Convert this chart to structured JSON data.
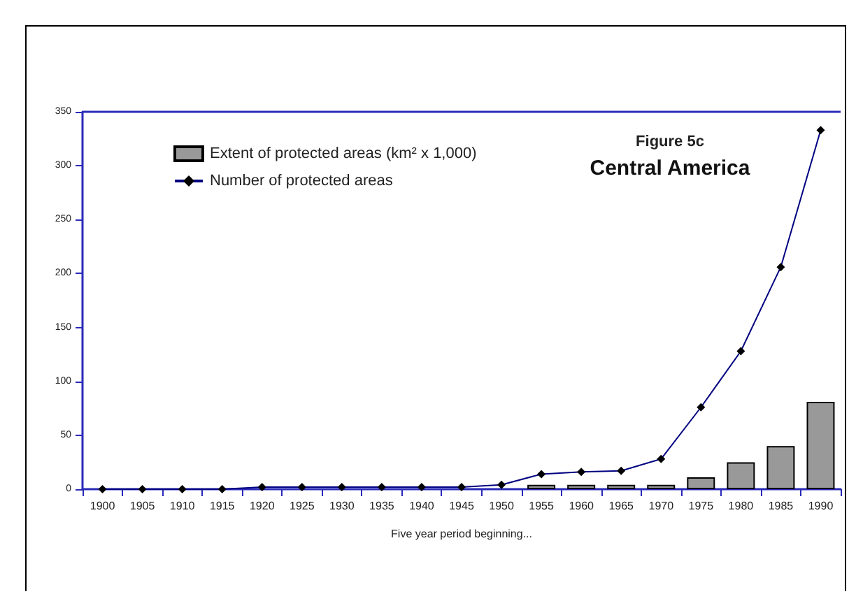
{
  "chart_data": {
    "type": "bar",
    "title": "Figure 5c",
    "subtitle": "Central America",
    "xlabel": "Five year period beginning...",
    "categories": [
      "1900",
      "1905",
      "1910",
      "1915",
      "1920",
      "1925",
      "1930",
      "1935",
      "1940",
      "1945",
      "1950",
      "1955",
      "1960",
      "1965",
      "1970",
      "1975",
      "1980",
      "1985",
      "1990"
    ],
    "series": [
      {
        "name": "Extent of protected areas (km² x 1,000)",
        "color": "#999999",
        "values": [
          0,
          0,
          0,
          0,
          0,
          0,
          0,
          0,
          0,
          0,
          0,
          4,
          4,
          4,
          4,
          11,
          25,
          40,
          81
        ]
      },
      {
        "name": "Number of protected areas",
        "type": "line",
        "color": "#000080",
        "marker": "diamond",
        "values": [
          0,
          0,
          0,
          0,
          2,
          2,
          2,
          2,
          2,
          2,
          4,
          14,
          16,
          17,
          28,
          76,
          128,
          206,
          333
        ]
      }
    ],
    "ylim": [
      0,
      350
    ],
    "yticks": [
      0,
      50,
      100,
      150,
      200,
      250,
      300,
      350
    ],
    "grid": false,
    "legend": "top left"
  }
}
